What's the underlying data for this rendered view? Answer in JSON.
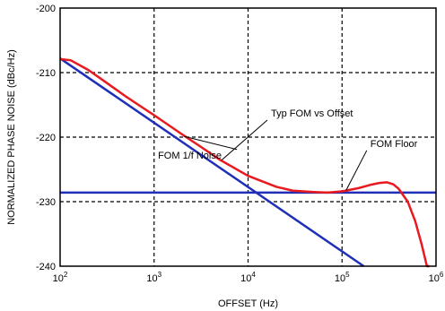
{
  "chart_data": {
    "type": "line",
    "xlabel": "OFFSET (Hz)",
    "ylabel": "NORMALIZED PHASE NOISE (dBc/Hz)",
    "xscale": "log",
    "xlim": [
      100,
      1000000
    ],
    "ylim": [
      -240,
      -200
    ],
    "x_tick_labels": [
      {
        "base": "10",
        "exp": "2",
        "value": 100
      },
      {
        "base": "10",
        "exp": "3",
        "value": 1000
      },
      {
        "base": "10",
        "exp": "4",
        "value": 10000
      },
      {
        "base": "10",
        "exp": "5",
        "value": 100000
      },
      {
        "base": "10",
        "exp": "6",
        "value": 1000000
      }
    ],
    "y_tick_labels": [
      "-200",
      "-210",
      "-220",
      "-230",
      "-240"
    ],
    "y_ticks": [
      -200,
      -210,
      -220,
      -230,
      -240
    ],
    "grid": "dashed",
    "series": [
      {
        "color": "#e8191f",
        "x": [
          100,
          130,
          200,
          300,
          500,
          1000,
          2000,
          3000,
          5000,
          10000,
          20000,
          30000,
          50000,
          70000,
          100000,
          150000,
          200000,
          250000,
          300000,
          350000,
          400000,
          500000,
          600000,
          700000,
          800000,
          850000
        ],
        "y": [
          -207.9,
          -208.1,
          -209.6,
          -211.4,
          -213.7,
          -216.6,
          -219.6,
          -221.3,
          -223.5,
          -226.0,
          -227.7,
          -228.3,
          -228.5,
          -228.6,
          -228.4,
          -227.9,
          -227.4,
          -227.1,
          -227.0,
          -227.3,
          -228.0,
          -230.0,
          -233.0,
          -236.5,
          -240.0,
          -240.0
        ]
      },
      {
        "color": "#1f2fb8",
        "x": [
          100,
          170000
        ],
        "y": [
          -207.8,
          -240.0
        ]
      },
      {
        "color": "#1f2fb8",
        "x": [
          100,
          1000000
        ],
        "y": [
          -228.6,
          -228.6
        ]
      }
    ],
    "annotations": [
      {
        "text": "Typ FOM vs Offset",
        "x": 17500,
        "y": -216.8,
        "arrow_to": [
          5200,
          -223.6
        ]
      },
      {
        "text": "FOM 1/f Noise",
        "x": 1100,
        "y": -223.3,
        "arrow_to": [
          2100,
          -219.9
        ]
      },
      {
        "text": "FOM Floor",
        "x": 200000,
        "y": -221.5,
        "arrow_to": [
          110000,
          -228.3
        ]
      }
    ]
  }
}
